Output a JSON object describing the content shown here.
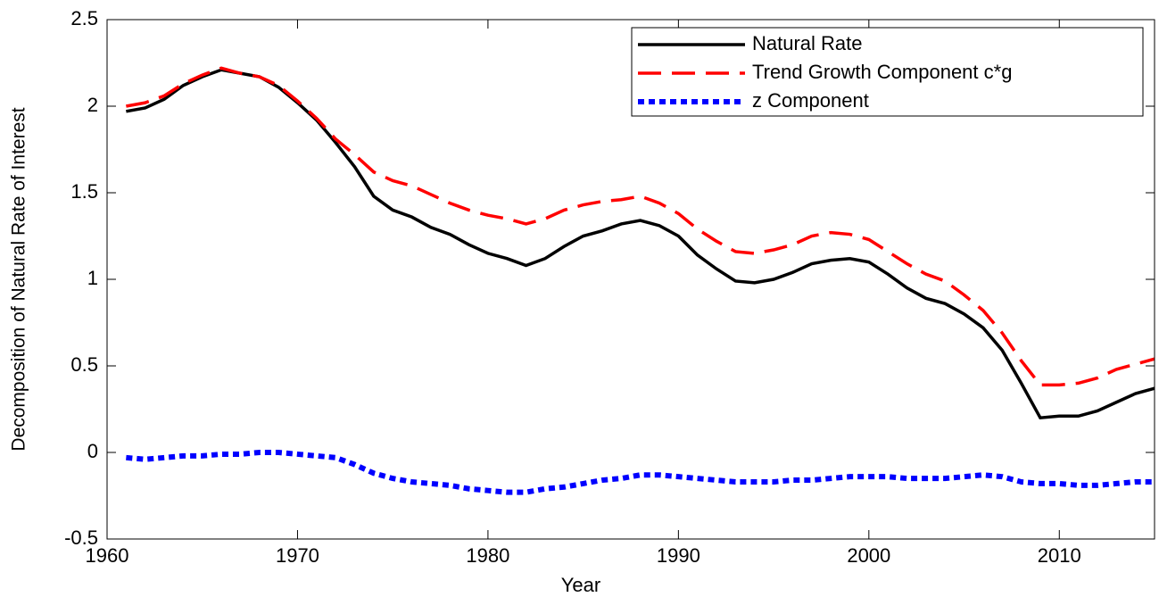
{
  "chart_data": {
    "type": "line",
    "xlabel": "Year",
    "ylabel": "Decomposition of Natural Rate of Interest",
    "x": [
      1961,
      1962,
      1963,
      1964,
      1965,
      1966,
      1967,
      1968,
      1969,
      1970,
      1971,
      1972,
      1973,
      1974,
      1975,
      1976,
      1977,
      1978,
      1979,
      1980,
      1981,
      1982,
      1983,
      1984,
      1985,
      1986,
      1987,
      1988,
      1989,
      1990,
      1991,
      1992,
      1993,
      1994,
      1995,
      1996,
      1997,
      1998,
      1999,
      2000,
      2001,
      2002,
      2003,
      2004,
      2005,
      2006,
      2007,
      2008,
      2009,
      2010,
      2011,
      2012,
      2013,
      2014,
      2015
    ],
    "series": [
      {
        "name": "Natural Rate",
        "color": "#000000",
        "line_style": "solid",
        "values": [
          1.97,
          1.99,
          2.04,
          2.12,
          2.17,
          2.21,
          2.19,
          2.17,
          2.11,
          2.02,
          1.92,
          1.79,
          1.65,
          1.48,
          1.4,
          1.36,
          1.3,
          1.26,
          1.2,
          1.15,
          1.12,
          1.08,
          1.12,
          1.19,
          1.25,
          1.28,
          1.32,
          1.34,
          1.31,
          1.25,
          1.14,
          1.06,
          0.99,
          0.98,
          1.0,
          1.04,
          1.09,
          1.11,
          1.12,
          1.1,
          1.03,
          0.95,
          0.89,
          0.86,
          0.8,
          0.72,
          0.59,
          0.4,
          0.2,
          0.21,
          0.21,
          0.24,
          0.29,
          0.34,
          0.37
        ]
      },
      {
        "name": "Trend Growth Component c*g",
        "color": "#ff0000",
        "line_style": "dashed",
        "values": [
          2.0,
          2.02,
          2.06,
          2.13,
          2.18,
          2.22,
          2.19,
          2.17,
          2.12,
          2.03,
          1.93,
          1.81,
          1.72,
          1.62,
          1.57,
          1.54,
          1.49,
          1.44,
          1.4,
          1.37,
          1.35,
          1.32,
          1.35,
          1.4,
          1.43,
          1.45,
          1.46,
          1.48,
          1.44,
          1.38,
          1.29,
          1.22,
          1.16,
          1.15,
          1.17,
          1.2,
          1.25,
          1.27,
          1.26,
          1.23,
          1.16,
          1.09,
          1.03,
          0.99,
          0.91,
          0.82,
          0.69,
          0.53,
          0.39,
          0.39,
          0.4,
          0.43,
          0.48,
          0.51,
          0.54
        ]
      },
      {
        "name": "z Component",
        "color": "#0000ff",
        "line_style": "dotted",
        "values": [
          -0.03,
          -0.04,
          -0.03,
          -0.02,
          -0.02,
          -0.01,
          -0.01,
          0.0,
          0.0,
          -0.01,
          -0.02,
          -0.03,
          -0.07,
          -0.12,
          -0.15,
          -0.17,
          -0.18,
          -0.19,
          -0.21,
          -0.22,
          -0.23,
          -0.23,
          -0.21,
          -0.2,
          -0.18,
          -0.16,
          -0.15,
          -0.13,
          -0.13,
          -0.14,
          -0.15,
          -0.16,
          -0.17,
          -0.17,
          -0.17,
          -0.16,
          -0.16,
          -0.15,
          -0.14,
          -0.14,
          -0.14,
          -0.15,
          -0.15,
          -0.15,
          -0.14,
          -0.13,
          -0.14,
          -0.17,
          -0.18,
          -0.18,
          -0.19,
          -0.19,
          -0.18,
          -0.17,
          -0.17
        ]
      }
    ],
    "xlim": [
      1960,
      2015
    ],
    "xticks": [
      1960,
      1970,
      1980,
      1990,
      2000,
      2010
    ],
    "ylim": [
      -0.5,
      2.5
    ],
    "yticks": [
      -0.5,
      0,
      0.5,
      1,
      1.5,
      2,
      2.5
    ],
    "grid": false,
    "legend_position": "upper-right"
  }
}
